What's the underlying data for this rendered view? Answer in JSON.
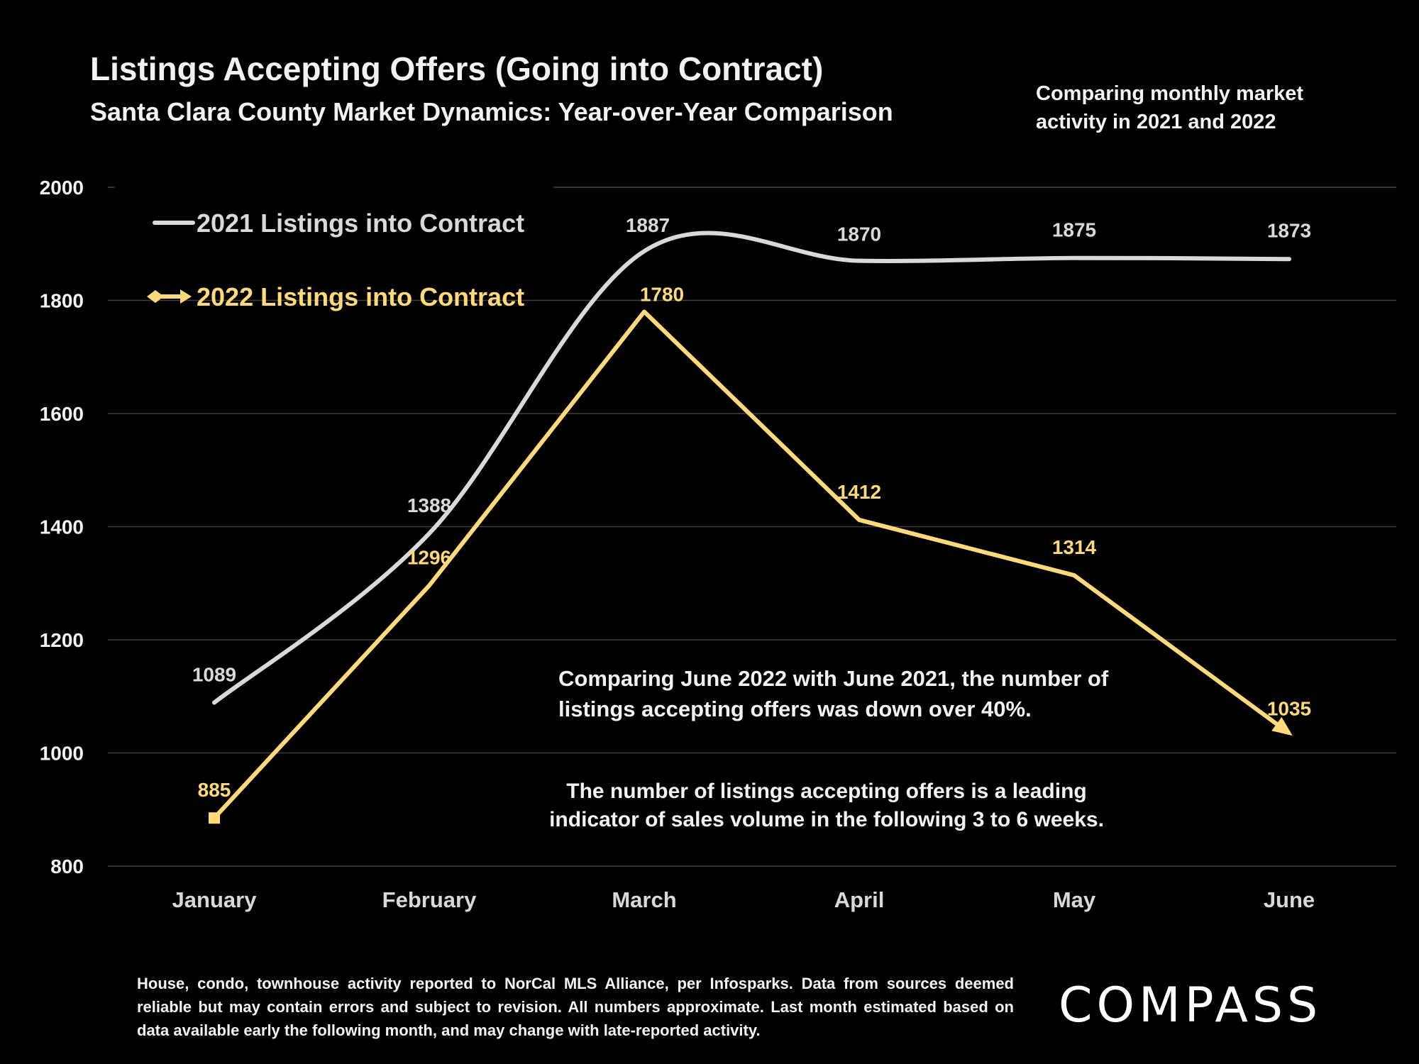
{
  "header": {
    "title": "Listings Accepting Offers (Going into Contract)",
    "subtitle": "Santa Clara County Market Dynamics: Year-over-Year Comparison",
    "side_note": "Comparing monthly market activity in 2021 and 2022"
  },
  "annotations": {
    "note1": "Comparing June 2022 with June 2021, the number of listings accepting offers was down over 40%.",
    "note2": "The number of listings accepting offers is a leading indicator of sales volume in the following 3 to 6 weeks."
  },
  "footer": {
    "text": "House, condo, townhouse activity reported to NorCal MLS Alliance, per Infosparks. Data from sources deemed reliable but may contain errors and subject to revision. All numbers approximate. Last month estimated based on data available early the following month, and may change with late-reported activity."
  },
  "logo": {
    "text": "COMPASS"
  },
  "colors": {
    "background": "#000000",
    "series_2021": "#d9d9d9",
    "series_2022": "#ffd97a",
    "grid": "#404040"
  },
  "chart_data": {
    "type": "line",
    "categories": [
      "January",
      "February",
      "March",
      "April",
      "May",
      "June"
    ],
    "series": [
      {
        "name": "2021 Listings into Contract",
        "values": [
          1089,
          1388,
          1887,
          1870,
          1875,
          1873
        ],
        "smooth": true
      },
      {
        "name": "2022 Listings into Contract",
        "values": [
          885,
          1296,
          1780,
          1412,
          1314,
          1035
        ],
        "smooth": false
      }
    ],
    "yticks": [
      800,
      1000,
      1200,
      1400,
      1600,
      1800,
      2000
    ],
    "ylim": [
      800,
      2000
    ],
    "grid": true,
    "legend_position": "top-left"
  }
}
